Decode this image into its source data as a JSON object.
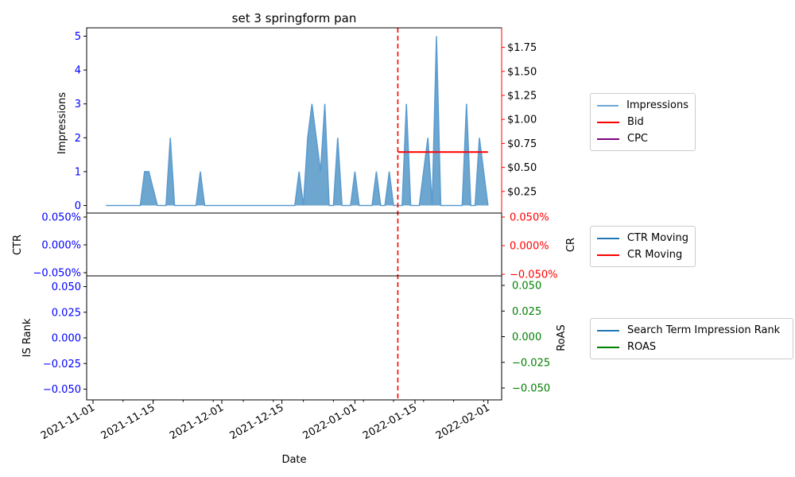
{
  "chart_data": [
    {
      "panel": "top",
      "type": "area",
      "title": "set 3 springform pan",
      "ylabel": "Impressions",
      "ylim": [
        -0.2,
        5.25
      ],
      "y_ticks": [
        "0",
        "1",
        "2",
        "3",
        "4",
        "5"
      ],
      "y2_ticks": [
        "$0.25",
        "$0.50",
        "$0.75",
        "$1.00",
        "$1.25",
        "$1.50",
        "$1.75"
      ],
      "y2lim": [
        0,
        2.0
      ],
      "x_start": "2021-11-01",
      "x_ticks": [
        "2021-11-01",
        "2021-11-15",
        "2021-12-01",
        "2021-12-15",
        "2022-01-01",
        "2022-01-15",
        "2022-02-01"
      ],
      "vline_date": "2022-01-11",
      "series": [
        {
          "name": "Impressions",
          "color": "#1f77b4",
          "x": [
            "2021-11-04",
            "2021-11-12",
            "2021-11-13",
            "2021-11-14",
            "2021-11-16",
            "2021-11-18",
            "2021-11-19",
            "2021-11-20",
            "2021-11-25",
            "2021-11-26",
            "2021-11-27",
            "2021-12-18",
            "2021-12-19",
            "2021-12-20",
            "2021-12-21",
            "2021-12-22",
            "2021-12-23",
            "2021-12-24",
            "2021-12-25",
            "2021-12-26",
            "2021-12-27",
            "2021-12-28",
            "2021-12-29",
            "2021-12-30",
            "2021-12-31",
            "2022-01-01",
            "2022-01-02",
            "2022-01-03",
            "2022-01-05",
            "2022-01-06",
            "2022-01-07",
            "2022-01-08",
            "2022-01-09",
            "2022-01-10",
            "2022-01-11",
            "2022-01-12",
            "2022-01-13",
            "2022-01-14",
            "2022-01-15",
            "2022-01-16",
            "2022-01-17",
            "2022-01-18",
            "2022-01-19",
            "2022-01-20",
            "2022-01-21",
            "2022-01-26",
            "2022-01-27",
            "2022-01-28",
            "2022-01-29",
            "2022-01-30",
            "2022-02-01"
          ],
          "values": [
            0,
            0,
            1,
            1,
            0,
            0,
            2,
            0,
            0,
            1,
            0,
            0,
            1,
            0,
            2,
            3,
            2,
            1,
            3,
            0,
            0,
            2,
            0,
            0,
            0,
            1,
            0,
            0,
            0,
            1,
            0,
            0,
            1,
            0,
            0,
            0,
            3,
            0,
            0,
            0,
            1,
            2,
            0,
            5,
            0,
            0,
            3,
            0,
            0,
            2,
            0
          ]
        },
        {
          "name": "Bid",
          "color": "#ff0000",
          "x": [
            "2022-01-11",
            "2022-02-01"
          ],
          "values": [
            0.66,
            0.66
          ]
        },
        {
          "name": "CPC",
          "color": "#800080",
          "x": [],
          "values": []
        }
      ]
    },
    {
      "panel": "middle",
      "type": "line",
      "ylabel": "CTR",
      "y2label": "CR",
      "y_ticks": [
        "0.050%",
        "0.000%",
        "−0.050%"
      ],
      "y2_ticks": [
        "0.050%",
        "0.000%",
        "−0.050%"
      ],
      "ylim": [
        -0.05,
        0.05
      ],
      "series": [
        {
          "name": "CTR Moving",
          "color": "#1f77b4",
          "x": [],
          "values": []
        },
        {
          "name": "CR Moving",
          "color": "#ff0000",
          "x": [],
          "values": []
        }
      ]
    },
    {
      "panel": "bottom",
      "type": "line",
      "ylabel": "IS Rank",
      "y2label": "RoAS",
      "xlabel": "Date",
      "y_ticks": [
        "0.050",
        "0.025",
        "0.000",
        "−0.025",
        "−0.050"
      ],
      "y2_ticks": [
        "0.050",
        "0.025",
        "0.000",
        "−0.025",
        "−0.050"
      ],
      "ylim": [
        -0.055,
        0.055
      ],
      "series": [
        {
          "name": "Search Term Impression Rank",
          "color": "#1f77b4",
          "x": [],
          "values": []
        },
        {
          "name": "ROAS",
          "color": "#008000",
          "x": [],
          "values": []
        }
      ]
    }
  ],
  "legends": {
    "top": [
      {
        "label": "Impressions",
        "color": "#6fa8d6"
      },
      {
        "label": "Bid",
        "color": "#ff0000"
      },
      {
        "label": "CPC",
        "color": "#800080"
      }
    ],
    "middle": [
      {
        "label": "CTR Moving",
        "color": "#1f77b4"
      },
      {
        "label": "CR Moving",
        "color": "#ff0000"
      }
    ],
    "bottom": [
      {
        "label": "Search Term Impression Rank",
        "color": "#1f77b4"
      },
      {
        "label": "ROAS",
        "color": "#008000"
      }
    ]
  }
}
